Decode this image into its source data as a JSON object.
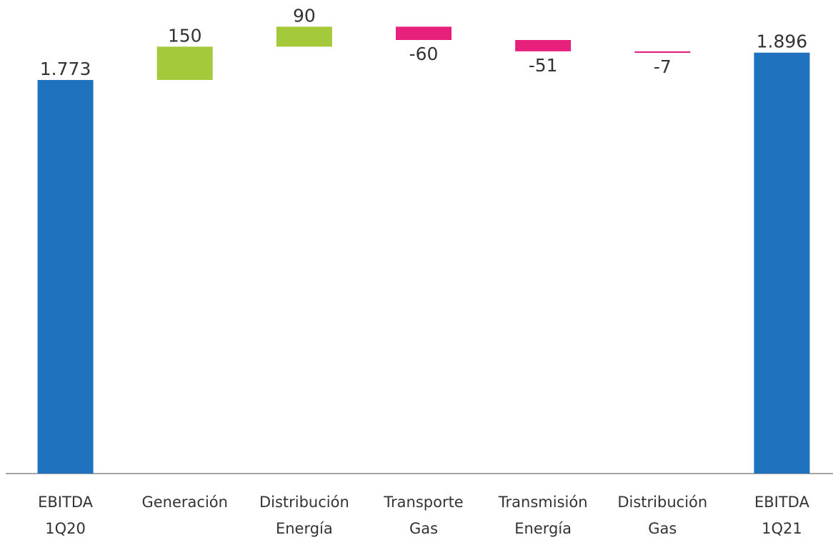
{
  "chart_data": {
    "type": "waterfall",
    "categories": [
      [
        "EBITDA",
        "1Q20"
      ],
      [
        "Generación"
      ],
      [
        "Distribución",
        "Energía"
      ],
      [
        "Transporte",
        "Gas"
      ],
      [
        "Transmisión",
        "Energía"
      ],
      [
        "Distribución",
        "Gas"
      ],
      [
        "EBITDA",
        "1Q21"
      ]
    ],
    "values": [
      1773,
      150,
      90,
      -60,
      -51,
      -7,
      1896
    ],
    "value_labels": [
      "1.773",
      "150",
      "90",
      "-60",
      "-51",
      "-7",
      "1.896"
    ],
    "measure": [
      "absolute",
      "relative",
      "relative",
      "relative",
      "relative",
      "relative",
      "absolute"
    ],
    "colors": {
      "total": "#1f72bd",
      "increase": "#a4c93a",
      "decrease": "#e6207c"
    },
    "ylim": [
      0,
      2000
    ]
  }
}
